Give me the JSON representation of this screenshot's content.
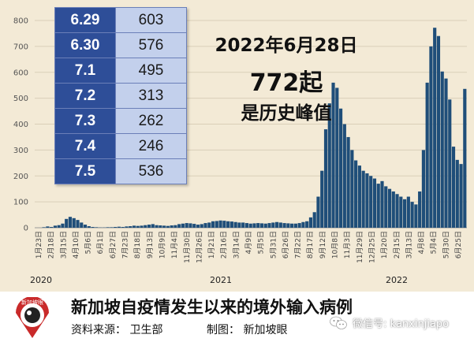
{
  "headline": {
    "line1": "2022年6月28日",
    "line2": "772起",
    "line3": "是历史峰值"
  },
  "table": [
    {
      "date": "6.29",
      "value": "603"
    },
    {
      "date": "6.30",
      "value": "576"
    },
    {
      "date": "7.1",
      "value": "495"
    },
    {
      "date": "7.2",
      "value": "313"
    },
    {
      "date": "7.3",
      "value": "262"
    },
    {
      "date": "7.4",
      "value": "246"
    },
    {
      "date": "7.5",
      "value": "536"
    }
  ],
  "footer": {
    "title": "新加坡自疫情发生以来的境外输入病例",
    "source": "资料来源：  卫生部",
    "credit": "制图：  新加坡眼",
    "logo_text": "新加坡眼",
    "watermark": "微信号: kanxinjiapo"
  },
  "chart_data": {
    "type": "bar",
    "title": "",
    "xlabel": "",
    "ylabel": "",
    "ylim": [
      0,
      800
    ],
    "yticks": [
      0,
      100,
      200,
      300,
      400,
      500,
      600,
      700,
      800
    ],
    "grid": true,
    "bar_color": "#1f4e79",
    "years": [
      "2020",
      "2021",
      "2022"
    ],
    "xtick_labels": [
      "1月23日",
      "2月18日",
      "3月15日",
      "4月10日",
      "5月6日",
      "6月1日",
      "6月27日",
      "7月23日",
      "8月18日",
      "9月13日",
      "10月9日",
      "11月4日",
      "11月30日",
      "12月26日",
      "1月21日",
      "2月16日",
      "3月14日",
      "4月9日",
      "5月5日",
      "5月31日",
      "6月26日",
      "7月22日",
      "8月17日",
      "9月12日",
      "10月8日",
      "11月3日",
      "11月29日",
      "12月25日",
      "1月20日",
      "2月15日",
      "3月13日",
      "4月8日",
      "5月4日",
      "5月30日",
      "6月25日"
    ],
    "series": [
      {
        "values": [
          0,
          0,
          2,
          5,
          3,
          8,
          10,
          16,
          34,
          42,
          37,
          30,
          20,
          12,
          6,
          3,
          2,
          1,
          1,
          2,
          2,
          3,
          4,
          3,
          5,
          6,
          8,
          7,
          8,
          10,
          12,
          14,
          10,
          9,
          8,
          7,
          9,
          10,
          14,
          16,
          18,
          17,
          15,
          12,
          14,
          18,
          20,
          25,
          26,
          28,
          27,
          25,
          24,
          22,
          20,
          20,
          18,
          16,
          17,
          18,
          17,
          16,
          18,
          20,
          22,
          20,
          18,
          17,
          16,
          16,
          18,
          22,
          25,
          40,
          60,
          120,
          220,
          380,
          480,
          560,
          540,
          460,
          400,
          350,
          300,
          260,
          240,
          220,
          210,
          200,
          190,
          170,
          180,
          160,
          150,
          140,
          130,
          120,
          110,
          120,
          100,
          90,
          140,
          300,
          560,
          700,
          772,
          740,
          603,
          576,
          495,
          313,
          262,
          246,
          536
        ]
      }
    ]
  }
}
